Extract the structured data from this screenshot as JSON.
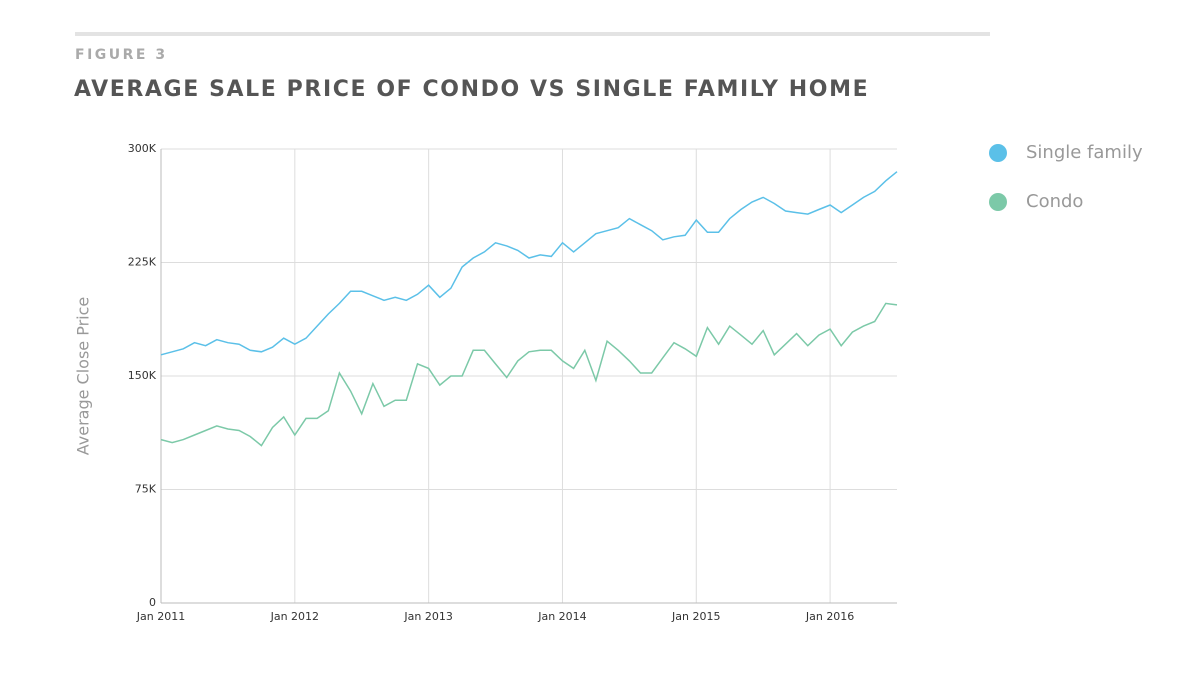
{
  "chart_data": {
    "type": "line",
    "figure_label": "FIGURE 3",
    "title": "AVERAGE SALE PRICE OF CONDO VS SINGLE FAMILY HOME",
    "y_label": "Average Close Price",
    "x": [
      "2011-01",
      "2011-02",
      "2011-03",
      "2011-04",
      "2011-05",
      "2011-06",
      "2011-07",
      "2011-08",
      "2011-09",
      "2011-10",
      "2011-11",
      "2011-12",
      "2012-01",
      "2012-02",
      "2012-03",
      "2012-04",
      "2012-05",
      "2012-06",
      "2012-07",
      "2012-08",
      "2012-09",
      "2012-10",
      "2012-11",
      "2012-12",
      "2013-01",
      "2013-02",
      "2013-03",
      "2013-04",
      "2013-05",
      "2013-06",
      "2013-07",
      "2013-08",
      "2013-09",
      "2013-10",
      "2013-11",
      "2013-12",
      "2014-01",
      "2014-02",
      "2014-03",
      "2014-04",
      "2014-05",
      "2014-06",
      "2014-07",
      "2014-08",
      "2014-09",
      "2014-10",
      "2014-11",
      "2014-12",
      "2015-01",
      "2015-02",
      "2015-03",
      "2015-04",
      "2015-05",
      "2015-06",
      "2015-07",
      "2015-08",
      "2015-09",
      "2015-10",
      "2015-11",
      "2015-12",
      "2016-01",
      "2016-02",
      "2016-03",
      "2016-04",
      "2016-05",
      "2016-06",
      "2016-07"
    ],
    "series": [
      {
        "name": "Single family",
        "color": "#5bc0e8",
        "values": [
          164000,
          166000,
          168000,
          172000,
          170000,
          174000,
          172000,
          171000,
          167000,
          166000,
          169000,
          175000,
          171000,
          175000,
          183000,
          191000,
          198000,
          206000,
          206000,
          203000,
          200000,
          202000,
          200000,
          204000,
          210000,
          202000,
          208000,
          222000,
          228000,
          232000,
          238000,
          236000,
          233000,
          228000,
          230000,
          229000,
          238000,
          232000,
          238000,
          244000,
          246000,
          248000,
          254000,
          250000,
          246000,
          240000,
          242000,
          243000,
          253000,
          245000,
          245000,
          254000,
          260000,
          265000,
          268000,
          264000,
          259000,
          258000,
          257000,
          260000,
          263000,
          258000,
          263000,
          268000,
          272000,
          279000,
          285000
        ]
      },
      {
        "name": "Condo",
        "color": "#7cc9a8",
        "values": [
          108000,
          106000,
          108000,
          111000,
          114000,
          117000,
          115000,
          114000,
          110000,
          104000,
          116000,
          123000,
          111000,
          122000,
          122000,
          127000,
          152000,
          140000,
          125000,
          145000,
          130000,
          134000,
          134000,
          158000,
          155000,
          144000,
          150000,
          150000,
          167000,
          167000,
          158000,
          149000,
          160000,
          166000,
          167000,
          167000,
          160000,
          155000,
          167000,
          147000,
          173000,
          167000,
          160000,
          152000,
          152000,
          162000,
          172000,
          168000,
          163000,
          182000,
          171000,
          183000,
          177000,
          171000,
          180000,
          164000,
          171000,
          178000,
          170000,
          177000,
          181000,
          170000,
          179000,
          183000,
          186000,
          198000,
          197000
        ]
      }
    ],
    "xlim": [
      "2011-01",
      "2016-07"
    ],
    "xticks": [
      {
        "value": "2011-01",
        "label": "Jan 2011"
      },
      {
        "value": "2012-01",
        "label": "Jan 2012"
      },
      {
        "value": "2013-01",
        "label": "Jan 2013"
      },
      {
        "value": "2014-01",
        "label": "Jan 2014"
      },
      {
        "value": "2015-01",
        "label": "Jan 2015"
      },
      {
        "value": "2016-01",
        "label": "Jan 2016"
      }
    ],
    "ylim": [
      0,
      300000
    ],
    "yticks": [
      0,
      {
        "value": 75000,
        "label": "75K"
      },
      {
        "value": 150000,
        "label": "150K"
      },
      {
        "value": 225000,
        "label": "225K"
      },
      {
        "value": 300000,
        "label": "300K"
      }
    ],
    "grid": true,
    "legend": "right"
  }
}
